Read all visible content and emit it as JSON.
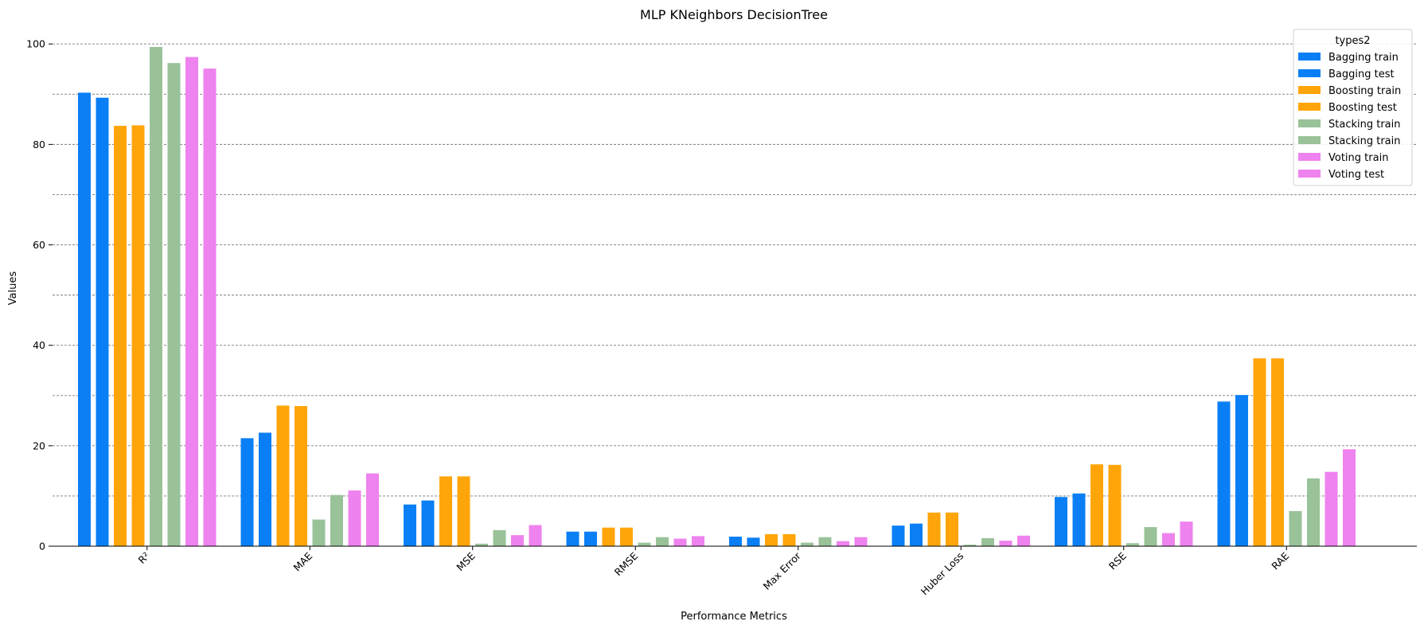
{
  "chart_data": {
    "type": "bar",
    "title": "MLP KNeighbors DecisionTree",
    "xlabel": "Performance Metrics",
    "ylabel": "Values",
    "ylim": [
      0,
      104
    ],
    "yticks": [
      0,
      20,
      40,
      60,
      80,
      100
    ],
    "grid": "horizontal dashed",
    "legend_title": "types2",
    "legend_position": "top-right",
    "categories": [
      "R²",
      "MAE",
      "MSE",
      "RMSE",
      "Max Error",
      "Huber Loss",
      "RSE",
      "RAE"
    ],
    "series": [
      {
        "name": "Bagging train",
        "color": "#0a7ff5",
        "values": [
          90.3,
          21.5,
          8.3,
          2.9,
          1.9,
          4.1,
          9.8,
          28.8
        ]
      },
      {
        "name": "Bagging test",
        "color": "#0a7ff5",
        "values": [
          89.3,
          22.6,
          9.1,
          2.9,
          1.7,
          4.5,
          10.5,
          30.1
        ]
      },
      {
        "name": "Boosting train",
        "color": "#ffa50a",
        "values": [
          83.7,
          28.0,
          13.9,
          3.7,
          2.4,
          6.7,
          16.3,
          37.4
        ]
      },
      {
        "name": "Boosting test",
        "color": "#ffa50a",
        "values": [
          83.8,
          27.9,
          13.9,
          3.7,
          2.4,
          6.7,
          16.2,
          37.4
        ]
      },
      {
        "name": "Stacking train",
        "color": "#99c299",
        "values": [
          99.4,
          5.3,
          0.5,
          0.7,
          0.7,
          0.3,
          0.6,
          7.0
        ]
      },
      {
        "name": "Stacking train",
        "color": "#99c299",
        "values": [
          96.2,
          10.2,
          3.2,
          1.8,
          1.8,
          1.6,
          3.8,
          13.5
        ]
      },
      {
        "name": "Voting train",
        "color": "#ee82ee",
        "values": [
          97.4,
          11.1,
          2.2,
          1.5,
          1.0,
          1.1,
          2.6,
          14.8
        ]
      },
      {
        "name": "Voting test",
        "color": "#ee82ee",
        "values": [
          95.1,
          14.5,
          4.2,
          2.0,
          1.8,
          2.1,
          4.9,
          19.3
        ]
      }
    ]
  }
}
